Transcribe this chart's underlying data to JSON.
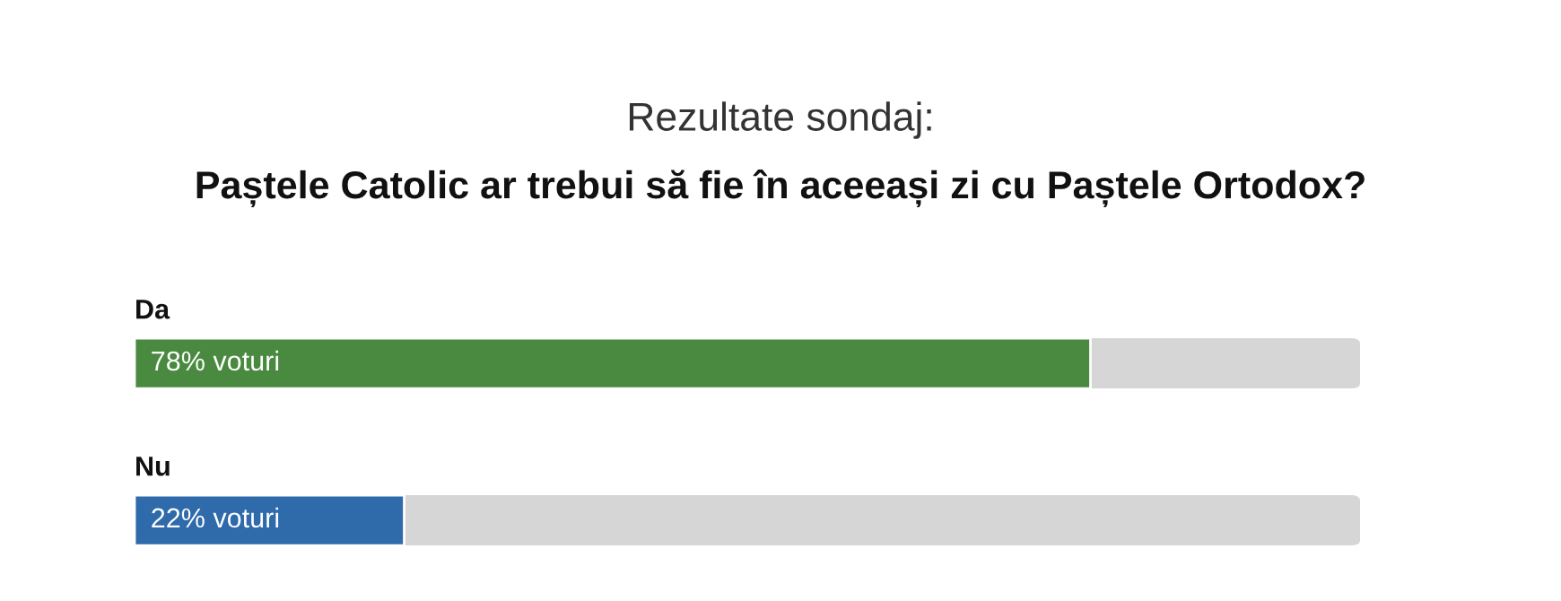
{
  "chart_data": {
    "type": "bar",
    "orientation": "horizontal",
    "title": "Rezultate sondaj:",
    "subtitle": "Paștele Catolic ar trebui să fie în aceeași zi cu Paștele Ortodox?",
    "categories": [
      "Da",
      "Nu"
    ],
    "values": [
      78,
      22
    ],
    "colors": [
      "#4a8a40",
      "#2f6aaa"
    ],
    "value_labels": [
      "78% voturi",
      "22% voturi"
    ],
    "xlim": [
      0,
      100
    ]
  }
}
